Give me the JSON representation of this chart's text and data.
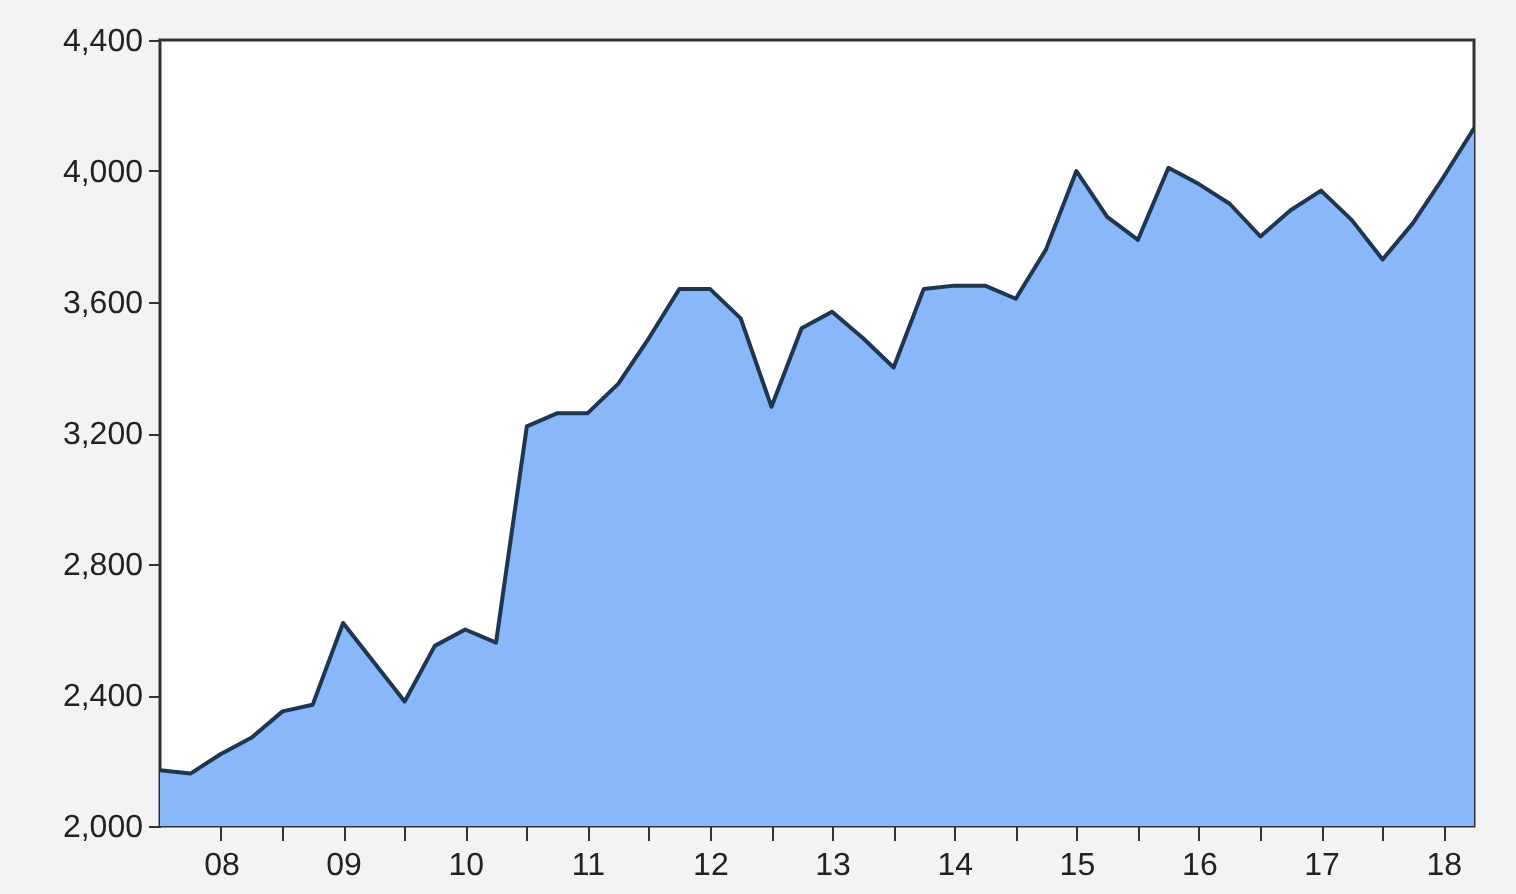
{
  "chart_data": {
    "type": "area",
    "x": [
      "2008-01",
      "2008-04",
      "2008-07",
      "2008-10",
      "2009-01",
      "2009-04",
      "2009-07",
      "2009-10",
      "2010-01",
      "2010-04",
      "2010-07",
      "2010-10",
      "2011-01",
      "2011-04",
      "2011-07",
      "2011-10",
      "2012-01",
      "2012-04",
      "2012-07",
      "2012-10",
      "2013-01",
      "2013-04",
      "2013-07",
      "2013-10",
      "2014-01",
      "2014-04",
      "2014-07",
      "2014-10",
      "2015-01",
      "2015-04",
      "2015-07",
      "2015-10",
      "2016-01",
      "2016-04",
      "2016-07",
      "2016-10",
      "2017-01",
      "2017-04",
      "2017-07",
      "2017-10",
      "2018-01",
      "2018-04",
      "2018-07",
      "2018-10"
    ],
    "series": [
      {
        "color": "#88b8fa",
        "values": [
          2170,
          2160,
          2220,
          2270,
          2350,
          2370,
          2620,
          2500,
          2380,
          2550,
          2600,
          2560,
          3220,
          3260,
          3260,
          3350,
          3490,
          3640,
          3640,
          3550,
          3280,
          3520,
          3570,
          3490,
          3400,
          3640,
          3650,
          3650,
          3610,
          3760,
          4000,
          3860,
          3790,
          4010,
          3960,
          3900,
          3800,
          3880,
          3940,
          3850,
          3730,
          3840,
          3980,
          4130
        ]
      }
    ],
    "xlim": [
      "2008-01",
      "2018-10"
    ],
    "xticks": [
      {
        "value": "2009-01",
        "label": null
      },
      {
        "value": "2010-01",
        "label": null
      },
      {
        "value": "2011-01",
        "label": null
      },
      {
        "value": "2012-01",
        "label": null
      },
      {
        "value": "2013-01",
        "label": null
      },
      {
        "value": "2014-01",
        "label": null
      },
      {
        "value": "2015-01",
        "label": null
      },
      {
        "value": "2016-01",
        "label": null
      },
      {
        "value": "2017-01",
        "label": null
      },
      {
        "value": "2018-01",
        "label": null
      },
      {
        "value": "2008-07",
        "label": "08"
      },
      {
        "value": "2009-07",
        "label": "09"
      },
      {
        "value": "2010-07",
        "label": "10"
      },
      {
        "value": "2011-07",
        "label": "11"
      },
      {
        "value": "2012-07",
        "label": "12"
      },
      {
        "value": "2013-07",
        "label": "13"
      },
      {
        "value": "2014-07",
        "label": "14"
      },
      {
        "value": "2015-07",
        "label": "15"
      },
      {
        "value": "2016-07",
        "label": "16"
      },
      {
        "value": "2017-07",
        "label": "17"
      },
      {
        "value": "2018-07",
        "label": "18"
      }
    ],
    "ylim": [
      2000,
      4400
    ],
    "yticks": [
      {
        "value": 2000,
        "label": "2,000"
      },
      {
        "value": 2400,
        "label": "2,400"
      },
      {
        "value": 2800,
        "label": "2,800"
      },
      {
        "value": 3200,
        "label": "3,200"
      },
      {
        "value": 3600,
        "label": "3,600"
      },
      {
        "value": 4000,
        "label": "4,000"
      },
      {
        "value": 4400,
        "label": "4,400"
      }
    ],
    "grid": false
  }
}
